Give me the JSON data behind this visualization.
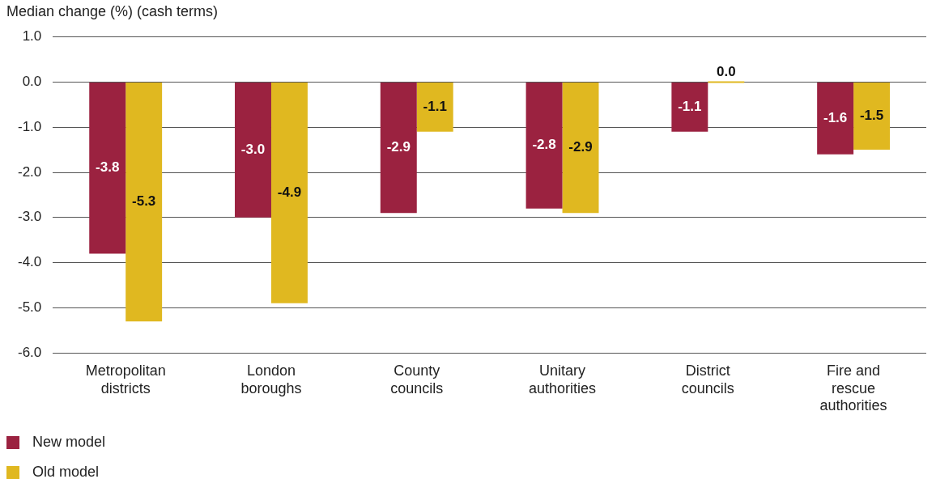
{
  "chart_data": {
    "type": "bar",
    "ylabel": "Median change (%) (cash terms)",
    "categories": [
      "Metropolitan districts",
      "London boroughs",
      "County councils",
      "Unitary authorities",
      "District councils",
      "Fire and rescue authorities"
    ],
    "series": [
      {
        "name": "New model",
        "color": "#9b2240",
        "values": [
          -3.8,
          -3.0,
          -2.9,
          -2.8,
          -1.1,
          -1.6
        ],
        "value_labels": [
          "-3.8",
          "-3.0",
          "-2.9",
          "-2.8",
          "-1.1",
          "-1.6"
        ]
      },
      {
        "name": "Old model",
        "color": "#e0b820",
        "values": [
          -5.3,
          -4.9,
          -1.1,
          -2.9,
          0.0,
          -1.5
        ],
        "value_labels": [
          "-5.3",
          "-4.9",
          "-1.1",
          "-2.9",
          "0.0",
          "-1.5"
        ]
      }
    ],
    "ylim": [
      -6,
      1
    ],
    "yticks": [
      {
        "value": -6,
        "label": "-6.0"
      },
      {
        "value": -5,
        "label": "-5.0"
      },
      {
        "value": -4,
        "label": "-4.0"
      },
      {
        "value": -3,
        "label": "-3.0"
      },
      {
        "value": -2,
        "label": "-2.0"
      },
      {
        "value": -1,
        "label": "-1.0"
      },
      {
        "value": 0,
        "label": "0.0"
      },
      {
        "value": 1,
        "label": "1.0"
      }
    ],
    "grid": "y",
    "legend": "bottom left"
  }
}
